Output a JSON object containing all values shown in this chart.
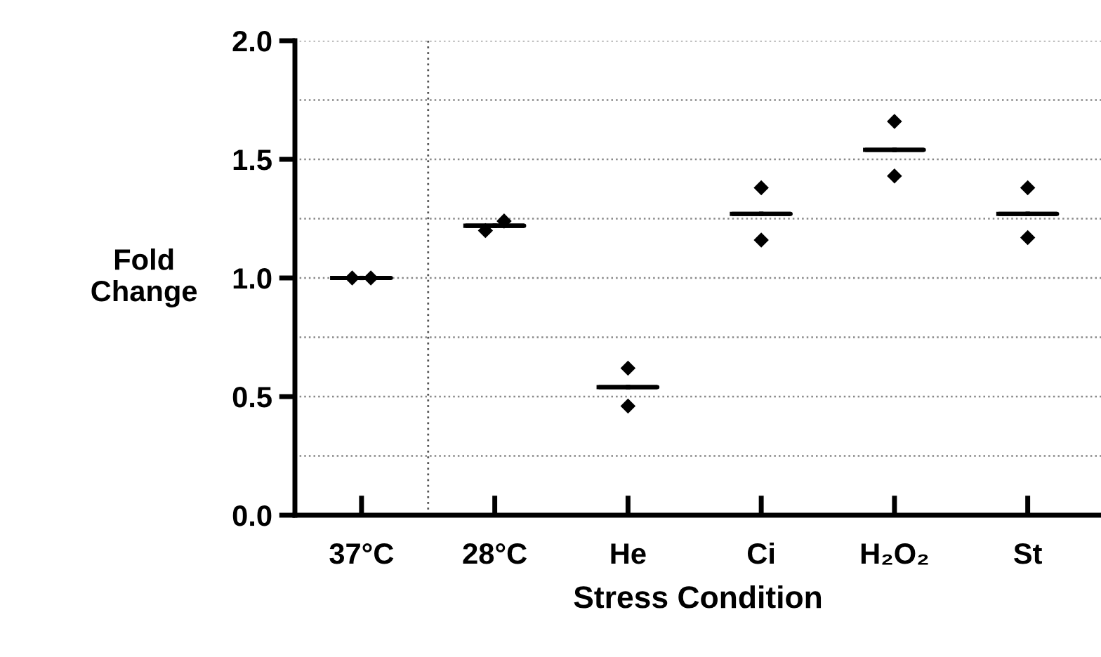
{
  "chart_data": {
    "type": "scatter",
    "xlabel": "Stress Condition",
    "ylabel": "Fold\nChange",
    "categories": [
      "37°C",
      "28°C",
      "He",
      "Ci",
      "H₂O₂",
      "St"
    ],
    "series": [
      {
        "marker": "diamond",
        "color": "#000000",
        "x": [
          "37°C",
          "37°C",
          "28°C",
          "28°C",
          "He",
          "He",
          "Ci",
          "Ci",
          "H₂O₂",
          "H₂O₂",
          "St",
          "St"
        ],
        "values": [
          1.0,
          1.0,
          1.2,
          1.24,
          0.62,
          0.46,
          1.38,
          1.16,
          1.66,
          1.43,
          1.38,
          1.17
        ]
      },
      {
        "type": "box",
        "color": "#000000",
        "boxes": [
          {
            "low": 1.0,
            "q1": 1.0,
            "median": 1.0,
            "q3": 1.0,
            "high": 1.0
          },
          {
            "low": 1.22,
            "q1": 1.22,
            "median": 1.22,
            "q3": 1.22,
            "high": 1.22
          },
          {
            "low": 0.54,
            "q1": 0.54,
            "median": 0.54,
            "q3": 0.54,
            "high": 0.54
          },
          {
            "low": 1.27,
            "q1": 1.27,
            "median": 1.27,
            "q3": 1.27,
            "high": 1.27
          },
          {
            "low": 1.54,
            "q1": 1.54,
            "median": 1.54,
            "q3": 1.54,
            "high": 1.54
          },
          {
            "low": 1.27,
            "q1": 1.27,
            "median": 1.27,
            "q3": 1.27,
            "high": 1.27
          }
        ]
      }
    ],
    "ylim": [
      0,
      2.0
    ],
    "yticks": [
      {
        "value": 0,
        "label": "0.0"
      },
      {
        "value": 0.25,
        "label": null
      },
      {
        "value": 0.5,
        "label": "0.5"
      },
      {
        "value": 0.75,
        "label": null
      },
      {
        "value": 1.0,
        "label": "1.0"
      },
      {
        "value": 1.25,
        "label": null
      },
      {
        "value": 1.5,
        "label": "1.5"
      },
      {
        "value": 1.75,
        "label": null
      },
      {
        "value": 2.0,
        "label": "2.0"
      }
    ],
    "grid": "y"
  }
}
